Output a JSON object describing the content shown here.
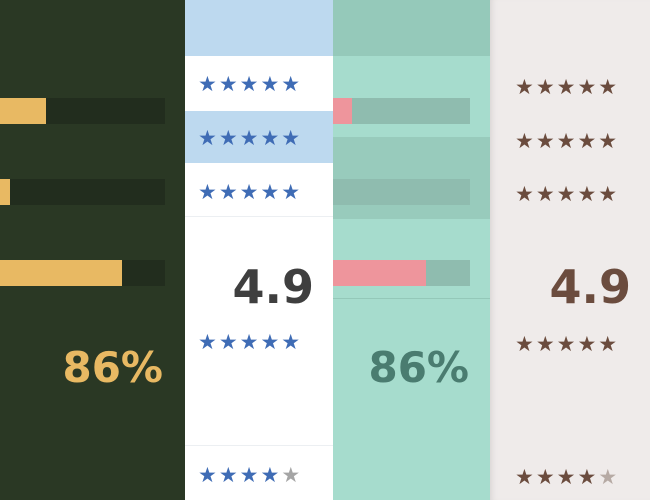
{
  "panel_dark": {
    "bars": [
      0.28,
      0.06,
      0.74
    ],
    "percent": "86%"
  },
  "panel_blue": {
    "stars_full": "★★★★★",
    "stars_partial_full": "★★★★",
    "stars_partial_empty": "★",
    "score": "4.9"
  },
  "panel_mint": {
    "bars": [
      0.14,
      0.0,
      0.68
    ],
    "percent": "86%"
  },
  "panel_grey": {
    "stars_full": "★★★★★",
    "stars_partial_full": "★★★★",
    "stars_partial_empty": "★",
    "score": "4.9"
  },
  "colors": {
    "dark_bg": "#2a3824",
    "gold_fill": "#e8b963",
    "blue_star": "#3f6cb5",
    "mint_bg": "#a6dccd",
    "pink_fill": "#ee959c",
    "brown_star": "#6b4c3e"
  }
}
